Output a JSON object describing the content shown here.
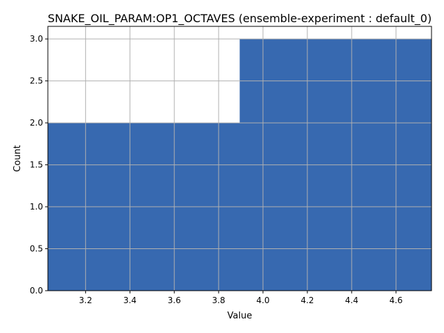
{
  "chart_data": {
    "type": "bar",
    "title": "SNAKE_OIL_PARAM:OP1_OCTAVES (ensemble-experiment : default_0)",
    "xlabel": "Value",
    "ylabel": "Count",
    "bins": [
      {
        "x0": 3.03,
        "x1": 3.895,
        "count": 2
      },
      {
        "x0": 3.895,
        "x1": 4.76,
        "count": 3
      }
    ],
    "xlim": [
      3.03,
      4.76
    ],
    "ylim": [
      0,
      3.15
    ],
    "xticks": [
      "3.2",
      "3.4",
      "3.6",
      "3.8",
      "4.0",
      "4.2",
      "4.4",
      "4.6"
    ],
    "yticks": [
      "0.0",
      "0.5",
      "1.0",
      "1.5",
      "2.0",
      "2.5",
      "3.0"
    ],
    "grid": true,
    "bar_color": "#3769b0"
  }
}
